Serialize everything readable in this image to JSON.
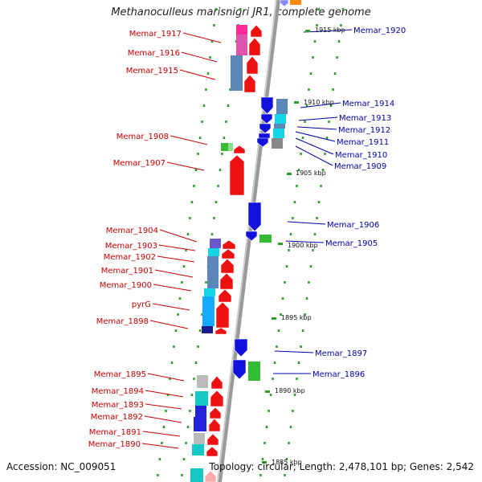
{
  "title": "Methanoculleus marisnigri JR1, complete genome",
  "accession": "Accession: NC_009051",
  "summary": "Topology: circular; Length: 2,478,101 bp; Genes: 2,542",
  "colors": {
    "left_label": "#cc0000",
    "right_label": "#0000aa",
    "spine": "#999999"
  },
  "left_labels": [
    "Memar_1917",
    "Memar_1916",
    "Memar_1915",
    "Memar_1908",
    "Memar_1907",
    "Memar_1904",
    "Memar_1903",
    "Memar_1902",
    "Memar_1901",
    "Memar_1900",
    "pyrG",
    "Memar_1898",
    "Memar_1895",
    "Memar_1894",
    "Memar_1893",
    "Memar_1892",
    "Memar_1891",
    "Memar_1890"
  ],
  "right_labels": [
    "Memar_1920",
    "Memar_1914",
    "Memar_1913",
    "Memar_1912",
    "Memar_1911",
    "Memar_1910",
    "Memar_1909",
    "Memar_1906",
    "Memar_1905",
    "Memar_1897",
    "Memar_1896"
  ],
  "kbp_ticks": [
    "1915 kbp",
    "1910 kbp",
    "1905 kbp",
    "1900 kbp",
    "1895 kbp",
    "1890 kbp",
    "1885 kbp"
  ]
}
